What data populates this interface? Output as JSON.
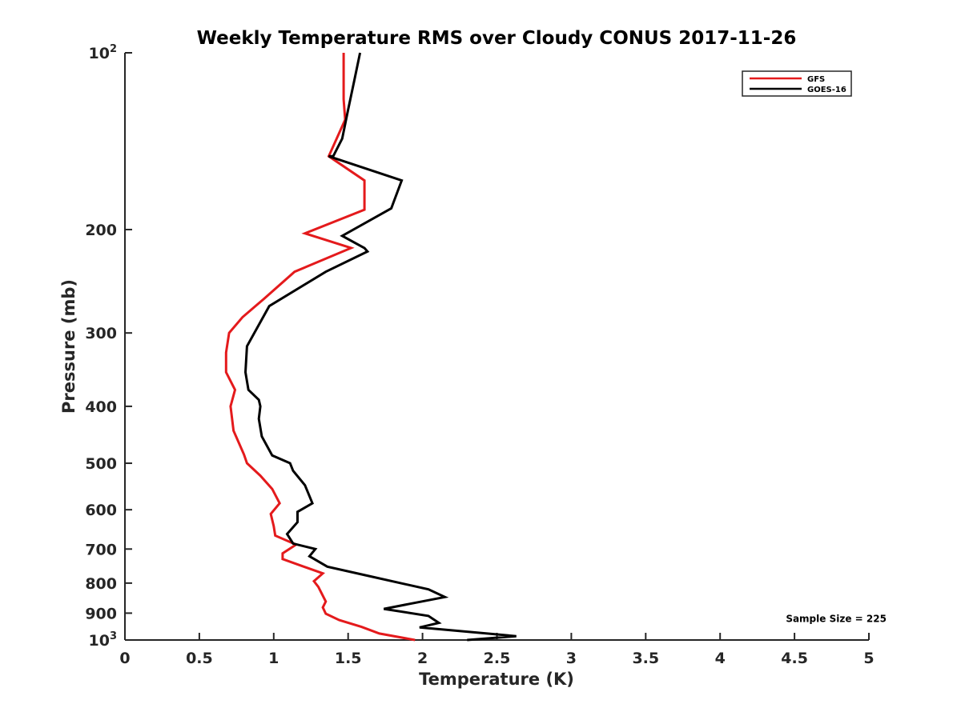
{
  "chart_data": {
    "type": "line",
    "title": "Weekly Temperature RMS over Cloudy CONUS 2017-11-26",
    "xlabel": "Temperature (K)",
    "ylabel": "Pressure (mb)",
    "xlim": [
      0,
      5
    ],
    "ylim": [
      100,
      1000
    ],
    "y_scale": "log",
    "y_reversed": true,
    "grid": false,
    "legend_position": "top-right",
    "x_ticks": [
      0,
      0.5,
      1,
      1.5,
      2,
      2.5,
      3,
      3.5,
      4,
      4.5,
      5
    ],
    "x_tick_labels": [
      "0",
      "0.5",
      "1",
      "1.5",
      "2",
      "2.5",
      "3",
      "3.5",
      "4",
      "4.5",
      "5"
    ],
    "y_ticks": [
      {
        "value": 100,
        "label": "10",
        "sup": "2"
      },
      {
        "value": 200,
        "label": "200",
        "sup": ""
      },
      {
        "value": 300,
        "label": "300",
        "sup": ""
      },
      {
        "value": 400,
        "label": "400",
        "sup": ""
      },
      {
        "value": 500,
        "label": "500",
        "sup": ""
      },
      {
        "value": 600,
        "label": "600",
        "sup": ""
      },
      {
        "value": 700,
        "label": "700",
        "sup": ""
      },
      {
        "value": 800,
        "label": "800",
        "sup": ""
      },
      {
        "value": 900,
        "label": "900",
        "sup": ""
      },
      {
        "value": 1000,
        "label": "10",
        "sup": "3"
      }
    ],
    "series": [
      {
        "name": "GFS",
        "color": "#e41a1c",
        "x": [
          1.47,
          1.47,
          1.47,
          1.48,
          1.37,
          1.61,
          1.61,
          1.21,
          1.52,
          1.14,
          0.93,
          0.79,
          0.7,
          0.68,
          0.68,
          0.74,
          0.71,
          0.73,
          0.8,
          0.82,
          0.91,
          0.99,
          1.04,
          0.98,
          1.0,
          1.01,
          1.15,
          1.06,
          1.06,
          1.17,
          1.33,
          1.27,
          1.3,
          1.35,
          1.33,
          1.35,
          1.44,
          1.59,
          1.71,
          1.95
        ],
        "y": [
          100,
          110,
          120,
          130,
          150,
          165,
          185,
          203,
          215,
          236,
          263,
          282,
          300,
          324,
          350,
          375,
          400,
          440,
          483,
          500,
          525,
          553,
          585,
          610,
          640,
          664,
          688,
          712,
          728,
          745,
          770,
          794,
          812,
          860,
          880,
          902,
          925,
          950,
          975,
          1000
        ]
      },
      {
        "name": "GOES-16",
        "color": "#000000",
        "x": [
          1.58,
          1.54,
          1.5,
          1.46,
          1.4,
          1.37,
          1.86,
          1.79,
          1.46,
          1.61,
          1.63,
          1.35,
          0.97,
          0.82,
          0.81,
          0.83,
          0.9,
          0.91,
          0.9,
          0.92,
          0.99,
          1.11,
          1.13,
          1.21,
          1.26,
          1.16,
          1.16,
          1.09,
          1.13,
          1.28,
          1.24,
          1.36,
          1.63,
          2.04,
          2.15,
          1.74,
          2.04,
          2.11,
          1.98,
          2.63,
          2.3
        ],
        "y": [
          100,
          112,
          125,
          140,
          150,
          150,
          165,
          184,
          205,
          215,
          218,
          236,
          270,
          316,
          350,
          375,
          390,
          400,
          420,
          450,
          485,
          500,
          515,
          545,
          585,
          605,
          630,
          660,
          685,
          700,
          720,
          750,
          777,
          820,
          845,
          885,
          910,
          935,
          952,
          985,
          1000
        ]
      }
    ],
    "annotations": [
      {
        "text": "Sample Size = 225",
        "x": 4.78,
        "y": 920
      }
    ]
  }
}
